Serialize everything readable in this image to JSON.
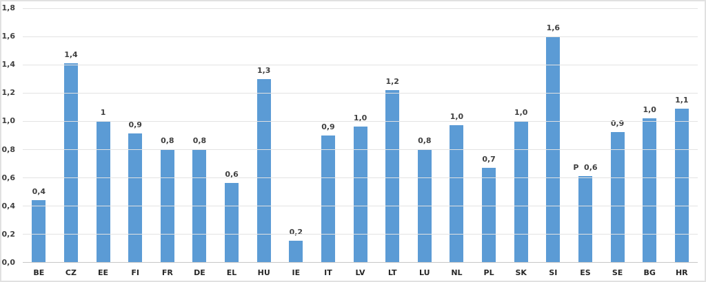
{
  "window": {
    "background_color": "#ffffff",
    "frame_border_color": "#e1e1e1"
  },
  "chart_data": {
    "type": "bar",
    "title": "",
    "xlabel": "",
    "ylabel": "",
    "legend": false,
    "grid": true,
    "categories": [
      "BE",
      "CZ",
      "EE",
      "FI",
      "FR",
      "DE",
      "EL",
      "HU",
      "IE",
      "IT",
      "LV",
      "LT",
      "LU",
      "NL",
      "PL",
      "SK",
      "SI",
      "ES",
      "SE",
      "BG",
      "HR"
    ],
    "values": [
      0.4,
      1.4,
      1,
      0.9,
      0.8,
      0.8,
      0.6,
      1.3,
      0.2,
      0.9,
      1.0,
      1.2,
      0.8,
      1.0,
      0.7,
      1.0,
      1.6,
      0.6,
      0.9,
      1.0,
      1.1
    ],
    "data_labels": [
      "0,4",
      "1,4",
      "1",
      "0,9",
      "0,8",
      "0,8",
      "0,6",
      "1,3",
      "0,2",
      "0,9",
      "1,0",
      "1,2",
      "0,8",
      "1,0",
      "0,7",
      "1,0",
      "1,6",
      "P  0,6",
      "0,9",
      "1,0",
      "1,1"
    ],
    "bar_heights": [
      0.44,
      1.41,
      1.0,
      0.91,
      0.8,
      0.8,
      0.56,
      1.3,
      0.15,
      0.9,
      0.96,
      1.22,
      0.8,
      0.97,
      0.67,
      1.0,
      1.6,
      0.61,
      0.92,
      1.02,
      1.09
    ],
    "ylim": [
      0,
      1.8
    ],
    "ytick_interval": 0.2,
    "yticks": [
      "1,8",
      "1,6",
      "1,4",
      "1,2",
      "1,0",
      "0,8",
      "0,6",
      "0,4",
      "0,2",
      "0,0"
    ],
    "bar_color": "#5b9bd5",
    "gridline_color": "#e2e2e2",
    "axis_line_color": "#c6c6c6",
    "label_text_color": "#3f3f3f",
    "decimal_separator": ","
  }
}
